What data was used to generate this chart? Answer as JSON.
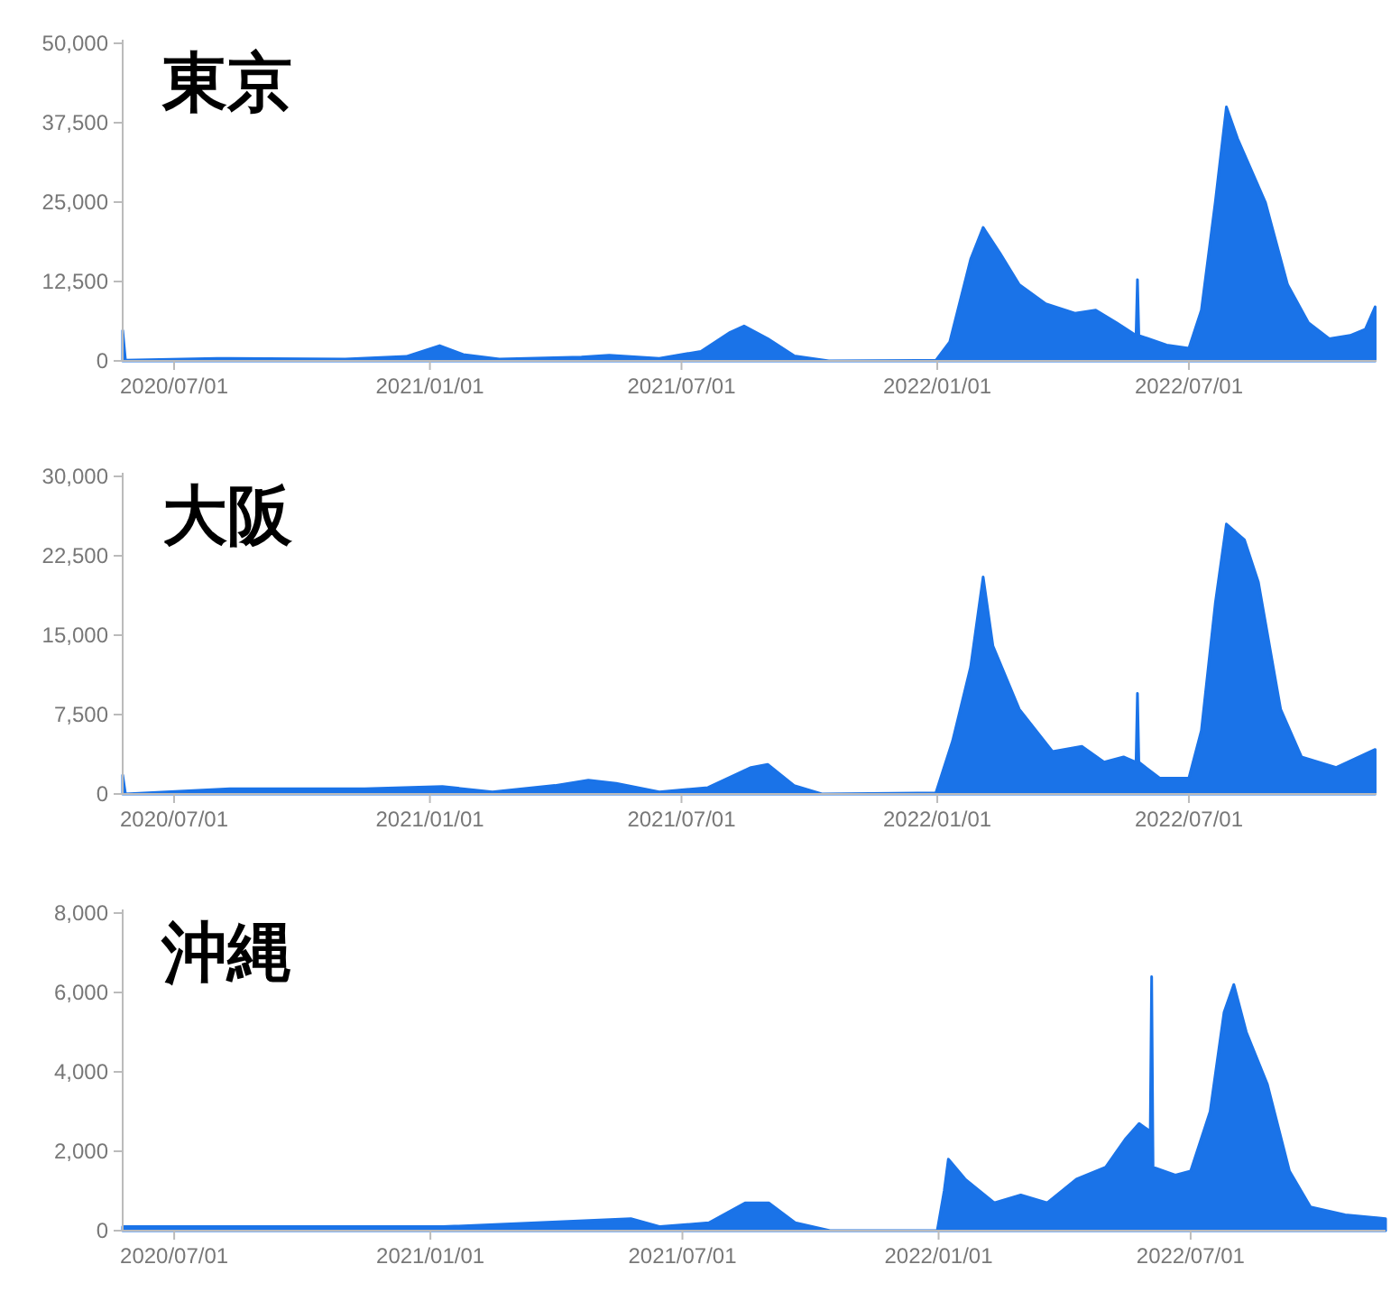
{
  "chart_data": [
    {
      "type": "area",
      "title": "東京",
      "color": "#1a73e8",
      "x": [
        "2020-05-25",
        "2020-05-27",
        "2020-08-01",
        "2020-11-01",
        "2020-12-15",
        "2021-01-08",
        "2021-01-25",
        "2021-02-20",
        "2021-04-20",
        "2021-05-10",
        "2021-06-15",
        "2021-07-15",
        "2021-08-05",
        "2021-08-15",
        "2021-09-01",
        "2021-09-20",
        "2021-10-15",
        "2021-12-31",
        "2022-01-10",
        "2022-01-25",
        "2022-02-03",
        "2022-02-15",
        "2022-03-01",
        "2022-03-20",
        "2022-04-10",
        "2022-04-25",
        "2022-05-10",
        "2022-05-24",
        "2022-05-25",
        "2022-05-26",
        "2022-06-15",
        "2022-07-01",
        "2022-07-10",
        "2022-07-20",
        "2022-07-28",
        "2022-08-05",
        "2022-08-15",
        "2022-08-25",
        "2022-09-10",
        "2022-09-25",
        "2022-10-10",
        "2022-10-25",
        "2022-11-05",
        "2022-11-12"
      ],
      "values": [
        4800,
        100,
        400,
        300,
        700,
        2400,
        1000,
        300,
        600,
        900,
        400,
        1500,
        4500,
        5500,
        3500,
        800,
        0,
        100,
        3000,
        16000,
        21000,
        17000,
        12000,
        9000,
        7500,
        8000,
        6000,
        4000,
        12800,
        4000,
        2500,
        2000,
        8000,
        25000,
        40000,
        35000,
        30000,
        25000,
        12000,
        6000,
        3500,
        4000,
        5000,
        8500
      ],
      "xlim": [
        "2020-05-25",
        "2022-11-13"
      ],
      "xticks": [
        {
          "value": "2020-07-01",
          "label": "2020/07/01"
        },
        {
          "value": "2021-01-01",
          "label": "2021/01/01"
        },
        {
          "value": "2021-07-01",
          "label": "2021/07/01"
        },
        {
          "value": "2022-01-01",
          "label": "2022/01/01"
        },
        {
          "value": "2022-07-01",
          "label": "2022/07/01"
        }
      ],
      "ylim": [
        0,
        50000
      ],
      "yticks": [
        {
          "value": 0,
          "label": "0"
        },
        {
          "value": 12500,
          "label": "12,500"
        },
        {
          "value": 25000,
          "label": "25,000"
        },
        {
          "value": 37500,
          "label": "37,500"
        },
        {
          "value": 50000,
          "label": "50,000"
        }
      ]
    },
    {
      "type": "area",
      "title": "大阪",
      "color": "#1a73e8",
      "x": [
        "2020-05-25",
        "2020-05-27",
        "2020-08-10",
        "2020-11-15",
        "2021-01-10",
        "2021-02-15",
        "2021-04-01",
        "2021-04-25",
        "2021-05-15",
        "2021-06-15",
        "2021-07-20",
        "2021-08-20",
        "2021-09-01",
        "2021-09-20",
        "2021-10-10",
        "2021-12-31",
        "2022-01-12",
        "2022-01-25",
        "2022-02-03",
        "2022-02-10",
        "2022-03-01",
        "2022-03-25",
        "2022-04-15",
        "2022-05-01",
        "2022-05-15",
        "2022-05-24",
        "2022-05-25",
        "2022-05-26",
        "2022-06-10",
        "2022-07-01",
        "2022-07-10",
        "2022-07-20",
        "2022-07-28",
        "2022-08-10",
        "2022-08-20",
        "2022-09-05",
        "2022-09-20",
        "2022-10-15",
        "2022-11-12"
      ],
      "values": [
        1800,
        0,
        500,
        500,
        700,
        200,
        800,
        1300,
        1000,
        200,
        600,
        2500,
        2800,
        800,
        0,
        100,
        5000,
        12000,
        20500,
        14000,
        8000,
        4000,
        4500,
        3000,
        3500,
        3000,
        9500,
        3000,
        1500,
        1500,
        6000,
        18000,
        25500,
        24000,
        20000,
        8000,
        3500,
        2500,
        4200
      ],
      "xlim": [
        "2020-05-25",
        "2022-11-13"
      ],
      "xticks": [
        {
          "value": "2020-07-01",
          "label": "2020/07/01"
        },
        {
          "value": "2021-01-01",
          "label": "2021/01/01"
        },
        {
          "value": "2021-07-01",
          "label": "2021/07/01"
        },
        {
          "value": "2022-01-01",
          "label": "2022/01/01"
        },
        {
          "value": "2022-07-01",
          "label": "2022/07/01"
        }
      ],
      "ylim": [
        0,
        30000
      ],
      "yticks": [
        {
          "value": 0,
          "label": "0"
        },
        {
          "value": 7500,
          "label": "7,500"
        },
        {
          "value": 15000,
          "label": "15,000"
        },
        {
          "value": 22500,
          "label": "22,500"
        },
        {
          "value": 30000,
          "label": "30,000"
        }
      ]
    },
    {
      "type": "area",
      "title": "沖縄",
      "color": "#1a73e8",
      "x": [
        "2020-05-25",
        "2020-08-10",
        "2021-01-10",
        "2021-05-25",
        "2021-06-15",
        "2021-07-20",
        "2021-08-15",
        "2021-09-01",
        "2021-09-20",
        "2021-10-15",
        "2021-12-31",
        "2022-01-05",
        "2022-01-08",
        "2022-01-20",
        "2022-02-10",
        "2022-03-01",
        "2022-03-20",
        "2022-04-10",
        "2022-05-01",
        "2022-05-15",
        "2022-05-25",
        "2022-06-02",
        "2022-06-03",
        "2022-06-04",
        "2022-06-20",
        "2022-07-01",
        "2022-07-15",
        "2022-07-25",
        "2022-08-01",
        "2022-08-10",
        "2022-08-25",
        "2022-09-10",
        "2022-09-25",
        "2022-10-20",
        "2022-11-18"
      ],
      "values": [
        100,
        100,
        100,
        300,
        100,
        200,
        700,
        700,
        200,
        0,
        0,
        1000,
        1800,
        1300,
        700,
        900,
        700,
        1300,
        1600,
        2300,
        2700,
        2500,
        6400,
        1600,
        1400,
        1500,
        3000,
        5500,
        6200,
        5000,
        3700,
        1500,
        600,
        400,
        300
      ],
      "xlim": [
        "2020-05-25",
        "2022-11-18"
      ],
      "xticks": [
        {
          "value": "2020-07-01",
          "label": "2020/07/01"
        },
        {
          "value": "2021-01-01",
          "label": "2021/01/01"
        },
        {
          "value": "2021-07-01",
          "label": "2021/07/01"
        },
        {
          "value": "2022-01-01",
          "label": "2022/01/01"
        },
        {
          "value": "2022-07-01",
          "label": "2022/07/01"
        }
      ],
      "ylim": [
        0,
        8000
      ],
      "yticks": [
        {
          "value": 0,
          "label": "0"
        },
        {
          "value": 2000,
          "label": "2,000"
        },
        {
          "value": 4000,
          "label": "4,000"
        },
        {
          "value": 6000,
          "label": "6,000"
        },
        {
          "value": 8000,
          "label": "8,000"
        }
      ]
    }
  ]
}
